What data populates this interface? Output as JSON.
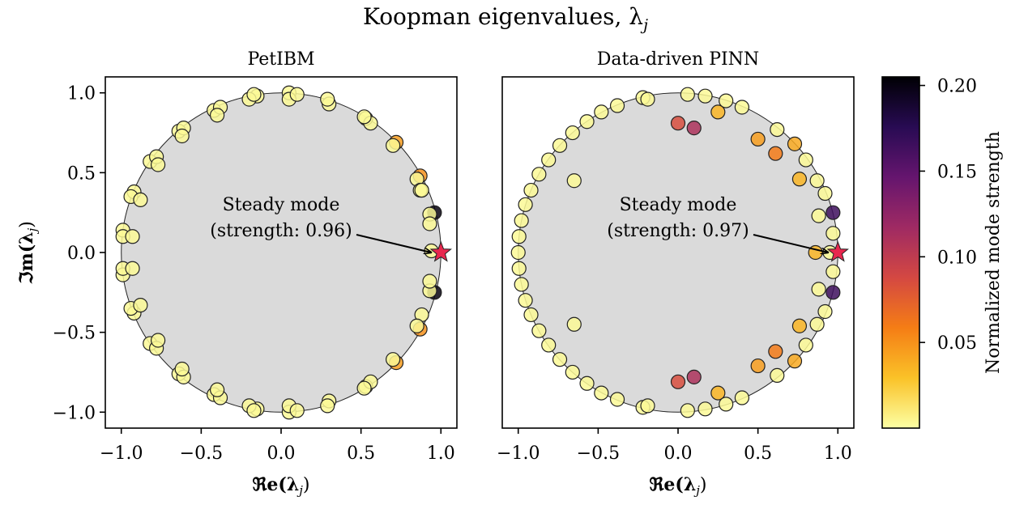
{
  "title": "Koopman eigenvalues, λ",
  "title_sub": "j",
  "colorbar": {
    "label": "Normalized mode strength",
    "ticks": [
      0.05,
      0.1,
      0.15,
      0.2
    ],
    "tick_labels": [
      "0.05",
      "0.10",
      "0.15",
      "0.20"
    ],
    "range": [
      0.0,
      0.205
    ]
  },
  "colormap": [
    "#fcffa4",
    "#fac228",
    "#f57d15",
    "#d44842",
    "#9f2a63",
    "#65156e",
    "#280b53",
    "#000004"
  ],
  "unit_circle_fill": "#dadada",
  "star_color": "#e8274e",
  "chart_data": [
    {
      "type": "scatter",
      "title": "PetIBM",
      "xlabel": "ℜe(λ",
      "xlabel_sub": "j",
      "ylabel": "ℑm(λ",
      "ylabel_sub": "j",
      "xlim": [
        -1.1,
        1.1
      ],
      "ylim": [
        -1.1,
        1.1
      ],
      "xticks": [
        -1.0,
        -0.5,
        0.0,
        0.5,
        1.0
      ],
      "xtick_labels": [
        "−1.0",
        "−0.5",
        "0.0",
        "0.5",
        "1.0"
      ],
      "yticks": [
        -1.0,
        -0.5,
        0.0,
        0.5,
        1.0
      ],
      "ytick_labels": [
        "−1.0",
        "−0.5",
        "0.0",
        "0.5",
        "1.0"
      ],
      "annotation": {
        "line1": "Steady mode",
        "line2": "(strength: 0.96)",
        "target": [
          1.0,
          0.0
        ]
      },
      "steady_mode": {
        "x": 1.0,
        "y": 0.0,
        "strength": 0.96
      },
      "points": [
        {
          "x": 0.96,
          "y": 0.25,
          "s": 0.2
        },
        {
          "x": 0.96,
          "y": -0.25,
          "s": 0.2
        },
        {
          "x": 0.87,
          "y": 0.48,
          "s": 0.05
        },
        {
          "x": 0.87,
          "y": -0.48,
          "s": 0.05
        },
        {
          "x": 0.72,
          "y": 0.69,
          "s": 0.045
        },
        {
          "x": 0.72,
          "y": -0.69,
          "s": 0.045
        },
        {
          "x": 0.94,
          "y": 0.01,
          "s": 0.003
        },
        {
          "x": 0.93,
          "y": 0.24,
          "s": 0.003
        },
        {
          "x": 0.93,
          "y": 0.18,
          "s": 0.003
        },
        {
          "x": 0.93,
          "y": -0.24,
          "s": 0.003
        },
        {
          "x": 0.93,
          "y": -0.18,
          "s": 0.003
        },
        {
          "x": 0.88,
          "y": 0.39,
          "s": 0.003
        },
        {
          "x": 0.88,
          "y": -0.39,
          "s": 0.003
        },
        {
          "x": 0.85,
          "y": 0.46,
          "s": 0.003
        },
        {
          "x": 0.85,
          "y": -0.46,
          "s": 0.003
        },
        {
          "x": 0.87,
          "y": 0.39,
          "s": 0.003
        },
        {
          "x": 0.88,
          "y": 0.39,
          "s": 0.003
        },
        {
          "x": 0.7,
          "y": 0.67,
          "s": 0.003
        },
        {
          "x": 0.7,
          "y": -0.67,
          "s": 0.003
        },
        {
          "x": 0.53,
          "y": 0.84,
          "s": 0.003
        },
        {
          "x": 0.53,
          "y": -0.84,
          "s": 0.003
        },
        {
          "x": 0.56,
          "y": 0.81,
          "s": 0.003
        },
        {
          "x": 0.56,
          "y": -0.81,
          "s": 0.003
        },
        {
          "x": 0.52,
          "y": 0.85,
          "s": 0.003
        },
        {
          "x": 0.52,
          "y": -0.85,
          "s": 0.003
        },
        {
          "x": 0.3,
          "y": 0.93,
          "s": 0.003
        },
        {
          "x": 0.3,
          "y": -0.93,
          "s": 0.003
        },
        {
          "x": 0.29,
          "y": 0.96,
          "s": 0.003
        },
        {
          "x": 0.29,
          "y": -0.96,
          "s": 0.003
        },
        {
          "x": 0.05,
          "y": 1.0,
          "s": 0.003
        },
        {
          "x": 0.05,
          "y": -1.0,
          "s": 0.003
        },
        {
          "x": 0.05,
          "y": 0.96,
          "s": 0.003
        },
        {
          "x": 0.05,
          "y": -0.96,
          "s": 0.003
        },
        {
          "x": 0.1,
          "y": 0.99,
          "s": 0.003
        },
        {
          "x": 0.1,
          "y": -0.99,
          "s": 0.003
        },
        {
          "x": -0.15,
          "y": 0.98,
          "s": 0.003
        },
        {
          "x": -0.15,
          "y": -0.98,
          "s": 0.003
        },
        {
          "x": -0.2,
          "y": 0.96,
          "s": 0.003
        },
        {
          "x": -0.2,
          "y": -0.96,
          "s": 0.003
        },
        {
          "x": -0.17,
          "y": 0.99,
          "s": 0.003
        },
        {
          "x": -0.17,
          "y": -0.99,
          "s": 0.003
        },
        {
          "x": -0.42,
          "y": 0.89,
          "s": 0.003
        },
        {
          "x": -0.42,
          "y": -0.89,
          "s": 0.003
        },
        {
          "x": -0.38,
          "y": 0.91,
          "s": 0.003
        },
        {
          "x": -0.38,
          "y": -0.91,
          "s": 0.003
        },
        {
          "x": -0.4,
          "y": 0.86,
          "s": 0.003
        },
        {
          "x": -0.4,
          "y": -0.86,
          "s": 0.003
        },
        {
          "x": -0.64,
          "y": 0.76,
          "s": 0.003
        },
        {
          "x": -0.64,
          "y": -0.76,
          "s": 0.003
        },
        {
          "x": -0.61,
          "y": 0.78,
          "s": 0.003
        },
        {
          "x": -0.61,
          "y": -0.78,
          "s": 0.003
        },
        {
          "x": -0.62,
          "y": 0.73,
          "s": 0.003
        },
        {
          "x": -0.62,
          "y": -0.73,
          "s": 0.003
        },
        {
          "x": -0.82,
          "y": 0.57,
          "s": 0.003
        },
        {
          "x": -0.82,
          "y": -0.57,
          "s": 0.003
        },
        {
          "x": -0.78,
          "y": 0.6,
          "s": 0.003
        },
        {
          "x": -0.78,
          "y": -0.6,
          "s": 0.003
        },
        {
          "x": -0.77,
          "y": 0.55,
          "s": 0.003
        },
        {
          "x": -0.77,
          "y": -0.55,
          "s": 0.003
        },
        {
          "x": -0.92,
          "y": 0.38,
          "s": 0.003
        },
        {
          "x": -0.92,
          "y": -0.38,
          "s": 0.003
        },
        {
          "x": -0.94,
          "y": 0.35,
          "s": 0.003
        },
        {
          "x": -0.94,
          "y": -0.35,
          "s": 0.003
        },
        {
          "x": -0.88,
          "y": 0.33,
          "s": 0.003
        },
        {
          "x": -0.88,
          "y": -0.33,
          "s": 0.003
        },
        {
          "x": -0.99,
          "y": 0.14,
          "s": 0.003
        },
        {
          "x": -0.99,
          "y": -0.14,
          "s": 0.003
        },
        {
          "x": -0.99,
          "y": 0.1,
          "s": 0.003
        },
        {
          "x": -0.99,
          "y": -0.1,
          "s": 0.003
        },
        {
          "x": -0.93,
          "y": 0.1,
          "s": 0.003
        },
        {
          "x": -0.93,
          "y": -0.1,
          "s": 0.003
        }
      ]
    },
    {
      "type": "scatter",
      "title": "Data-driven PINN",
      "xlabel": "ℜe(λ",
      "xlabel_sub": "j",
      "xlim": [
        -1.1,
        1.1
      ],
      "ylim": [
        -1.1,
        1.1
      ],
      "xticks": [
        -1.0,
        -0.5,
        0.0,
        0.5,
        1.0
      ],
      "xtick_labels": [
        "−1.0",
        "−0.5",
        "0.0",
        "0.5",
        "1.0"
      ],
      "annotation": {
        "line1": "Steady mode",
        "line2": "(strength: 0.97)",
        "target": [
          1.0,
          0.0
        ]
      },
      "steady_mode": {
        "x": 1.0,
        "y": 0.0,
        "strength": 0.97
      },
      "points": [
        {
          "x": 0.97,
          "y": 0.25,
          "s": 0.165
        },
        {
          "x": 0.97,
          "y": -0.25,
          "s": 0.165
        },
        {
          "x": 0.1,
          "y": 0.78,
          "s": 0.11
        },
        {
          "x": 0.1,
          "y": -0.78,
          "s": 0.11
        },
        {
          "x": 0.0,
          "y": 0.81,
          "s": 0.085
        },
        {
          "x": 0.0,
          "y": -0.81,
          "s": 0.085
        },
        {
          "x": 0.61,
          "y": 0.62,
          "s": 0.06
        },
        {
          "x": 0.61,
          "y": -0.62,
          "s": 0.06
        },
        {
          "x": 0.5,
          "y": 0.71,
          "s": 0.045
        },
        {
          "x": 0.5,
          "y": -0.71,
          "s": 0.045
        },
        {
          "x": 0.73,
          "y": 0.68,
          "s": 0.04
        },
        {
          "x": 0.73,
          "y": -0.68,
          "s": 0.04
        },
        {
          "x": 0.86,
          "y": 0.0,
          "s": 0.035
        },
        {
          "x": 0.76,
          "y": 0.46,
          "s": 0.035
        },
        {
          "x": 0.76,
          "y": -0.46,
          "s": 0.035
        },
        {
          "x": 0.25,
          "y": 0.88,
          "s": 0.035
        },
        {
          "x": 0.25,
          "y": -0.88,
          "s": 0.035
        },
        {
          "x": 0.95,
          "y": 0.0,
          "s": 0.003
        },
        {
          "x": -0.65,
          "y": 0.45,
          "s": 0.003
        },
        {
          "x": -0.65,
          "y": -0.45,
          "s": 0.003
        },
        {
          "x": -1.0,
          "y": 0.0,
          "s": 0.003
        },
        {
          "x": -0.995,
          "y": 0.1,
          "s": 0.003
        },
        {
          "x": -0.995,
          "y": -0.1,
          "s": 0.003
        },
        {
          "x": -0.98,
          "y": 0.2,
          "s": 0.003
        },
        {
          "x": -0.98,
          "y": -0.2,
          "s": 0.003
        },
        {
          "x": -0.955,
          "y": 0.3,
          "s": 0.003
        },
        {
          "x": -0.955,
          "y": -0.3,
          "s": 0.003
        },
        {
          "x": -0.92,
          "y": 0.39,
          "s": 0.003
        },
        {
          "x": -0.92,
          "y": -0.39,
          "s": 0.003
        },
        {
          "x": -0.87,
          "y": 0.49,
          "s": 0.003
        },
        {
          "x": -0.87,
          "y": -0.49,
          "s": 0.003
        },
        {
          "x": -0.81,
          "y": 0.58,
          "s": 0.003
        },
        {
          "x": -0.81,
          "y": -0.58,
          "s": 0.003
        },
        {
          "x": -0.74,
          "y": 0.67,
          "s": 0.003
        },
        {
          "x": -0.74,
          "y": -0.67,
          "s": 0.003
        },
        {
          "x": -0.66,
          "y": 0.75,
          "s": 0.003
        },
        {
          "x": -0.66,
          "y": -0.75,
          "s": 0.003
        },
        {
          "x": -0.57,
          "y": 0.82,
          "s": 0.003
        },
        {
          "x": -0.57,
          "y": -0.82,
          "s": 0.003
        },
        {
          "x": -0.48,
          "y": 0.88,
          "s": 0.003
        },
        {
          "x": -0.48,
          "y": -0.88,
          "s": 0.003
        },
        {
          "x": -0.38,
          "y": 0.92,
          "s": 0.003
        },
        {
          "x": -0.38,
          "y": -0.92,
          "s": 0.003
        },
        {
          "x": -0.22,
          "y": 0.97,
          "s": 0.003
        },
        {
          "x": -0.22,
          "y": -0.97,
          "s": 0.003
        },
        {
          "x": -0.19,
          "y": 0.96,
          "s": 0.003
        },
        {
          "x": -0.19,
          "y": -0.96,
          "s": 0.003
        },
        {
          "x": 0.06,
          "y": 0.99,
          "s": 0.003
        },
        {
          "x": 0.06,
          "y": -0.99,
          "s": 0.003
        },
        {
          "x": 0.17,
          "y": 0.98,
          "s": 0.003
        },
        {
          "x": 0.17,
          "y": -0.98,
          "s": 0.003
        },
        {
          "x": 0.3,
          "y": 0.95,
          "s": 0.003
        },
        {
          "x": 0.3,
          "y": -0.95,
          "s": 0.003
        },
        {
          "x": 0.4,
          "y": 0.91,
          "s": 0.003
        },
        {
          "x": 0.4,
          "y": -0.91,
          "s": 0.003
        },
        {
          "x": 0.62,
          "y": 0.77,
          "s": 0.003
        },
        {
          "x": 0.62,
          "y": -0.77,
          "s": 0.003
        },
        {
          "x": 0.8,
          "y": 0.58,
          "s": 0.003
        },
        {
          "x": 0.8,
          "y": -0.58,
          "s": 0.003
        },
        {
          "x": 0.87,
          "y": 0.45,
          "s": 0.003
        },
        {
          "x": 0.87,
          "y": -0.45,
          "s": 0.003
        },
        {
          "x": 0.92,
          "y": 0.37,
          "s": 0.003
        },
        {
          "x": 0.92,
          "y": -0.37,
          "s": 0.003
        },
        {
          "x": 0.88,
          "y": 0.23,
          "s": 0.003
        },
        {
          "x": 0.88,
          "y": -0.23,
          "s": 0.003
        },
        {
          "x": 0.97,
          "y": 0.12,
          "s": 0.003
        },
        {
          "x": 0.97,
          "y": -0.12,
          "s": 0.003
        }
      ]
    }
  ]
}
